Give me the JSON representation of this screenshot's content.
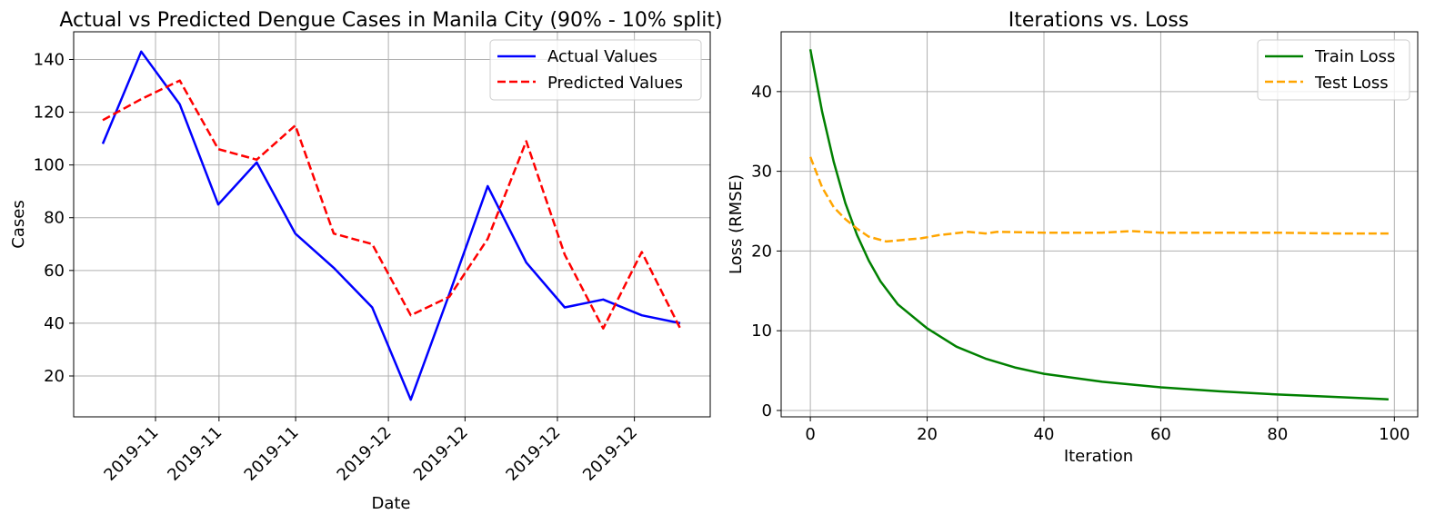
{
  "chart_data": [
    {
      "type": "line",
      "title": "Actual vs Predicted Dengue Cases in Manila City (90% - 10% split)",
      "xlabel": "Date",
      "ylabel": "Cases",
      "x_tick_labels": [
        "2019-11",
        "2019-11",
        "2019-11",
        "2019-12",
        "2019-12",
        "2019-12",
        "2019-12"
      ],
      "y_ticks": [
        20,
        40,
        60,
        80,
        100,
        120,
        140
      ],
      "ylim": [
        4.5,
        150.5
      ],
      "grid": true,
      "legend_position": "upper-right",
      "series": [
        {
          "name": "Actual Values",
          "color": "#0000ff",
          "style": "solid",
          "values": [
            108,
            143,
            123,
            85,
            101,
            74,
            61,
            46,
            11,
            51,
            92,
            63,
            46,
            49,
            43,
            40
          ]
        },
        {
          "name": "Predicted Values",
          "color": "#ff0000",
          "style": "dashed",
          "values": [
            117,
            125,
            132,
            106,
            102,
            115,
            74,
            70,
            43,
            50,
            72,
            109,
            66,
            38,
            67,
            38
          ]
        }
      ]
    },
    {
      "type": "line",
      "title": "Iterations vs. Loss",
      "xlabel": "Iteration",
      "ylabel": "Loss (RMSE)",
      "x_ticks": [
        0,
        20,
        40,
        60,
        80,
        100
      ],
      "y_ticks": [
        0,
        10,
        20,
        30,
        40
      ],
      "xlim": [
        -5,
        104
      ],
      "ylim": [
        -0.8,
        47.5
      ],
      "grid": true,
      "legend_position": "upper-right",
      "series": [
        {
          "name": "Train Loss",
          "color": "#008000",
          "style": "solid",
          "x": [
            0,
            2,
            4,
            6,
            8,
            10,
            12,
            15,
            20,
            25,
            30,
            35,
            40,
            50,
            60,
            70,
            80,
            90,
            99
          ],
          "values": [
            45.3,
            37.5,
            31.2,
            26.0,
            22.0,
            18.8,
            16.2,
            13.3,
            10.3,
            8.0,
            6.5,
            5.4,
            4.6,
            3.6,
            2.9,
            2.4,
            2.0,
            1.7,
            1.4
          ]
        },
        {
          "name": "Test Loss",
          "color": "#ffa500",
          "style": "dashed",
          "x": [
            0,
            2,
            4,
            6,
            8,
            10,
            13,
            16,
            19,
            22,
            27,
            30,
            32,
            40,
            50,
            55,
            60,
            70,
            80,
            90,
            99
          ],
          "values": [
            31.8,
            28.0,
            25.5,
            24.0,
            22.8,
            21.8,
            21.2,
            21.4,
            21.6,
            22.0,
            22.4,
            22.2,
            22.4,
            22.3,
            22.3,
            22.5,
            22.3,
            22.3,
            22.3,
            22.2,
            22.2
          ]
        }
      ]
    }
  ]
}
